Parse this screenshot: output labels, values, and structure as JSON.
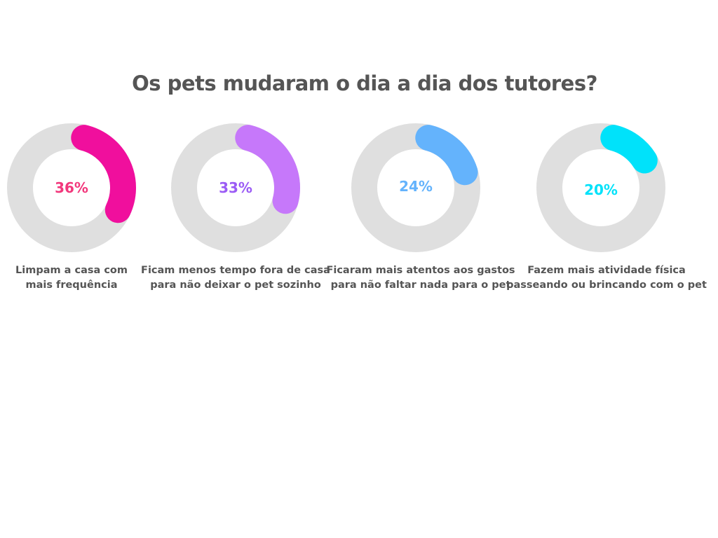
{
  "chart_data": {
    "type": "donut",
    "title": "Os pets mudaram o dia a dia dos tutores?",
    "unit": "%",
    "track_color": "#DFDFDF",
    "items": [
      {
        "value": 36,
        "value_label": "36%",
        "label_lines": [
          "Limpam a casa com",
          "mais frequência"
        ],
        "color": "#F00F9D",
        "text_color": "#F2387C"
      },
      {
        "value": 33,
        "value_label": "33%",
        "label_lines": [
          "Ficam menos tempo fora de casa",
          "para não deixar o pet sozinho"
        ],
        "color": "#C678FA",
        "text_color": "#9B5CF5"
      },
      {
        "value": 24,
        "value_label": "24%",
        "label_lines": [
          "Ficaram mais atentos aos gastos",
          "para não faltar nada para o pet"
        ],
        "color": "#64B3FC",
        "text_color": "#64B3FC"
      },
      {
        "value": 20,
        "value_label": "20%",
        "label_lines": [
          "Fazem mais atividade física",
          "passeando ou brincando com o pet"
        ],
        "color": "#00E2FA",
        "text_color": "#00E2FA"
      }
    ]
  }
}
